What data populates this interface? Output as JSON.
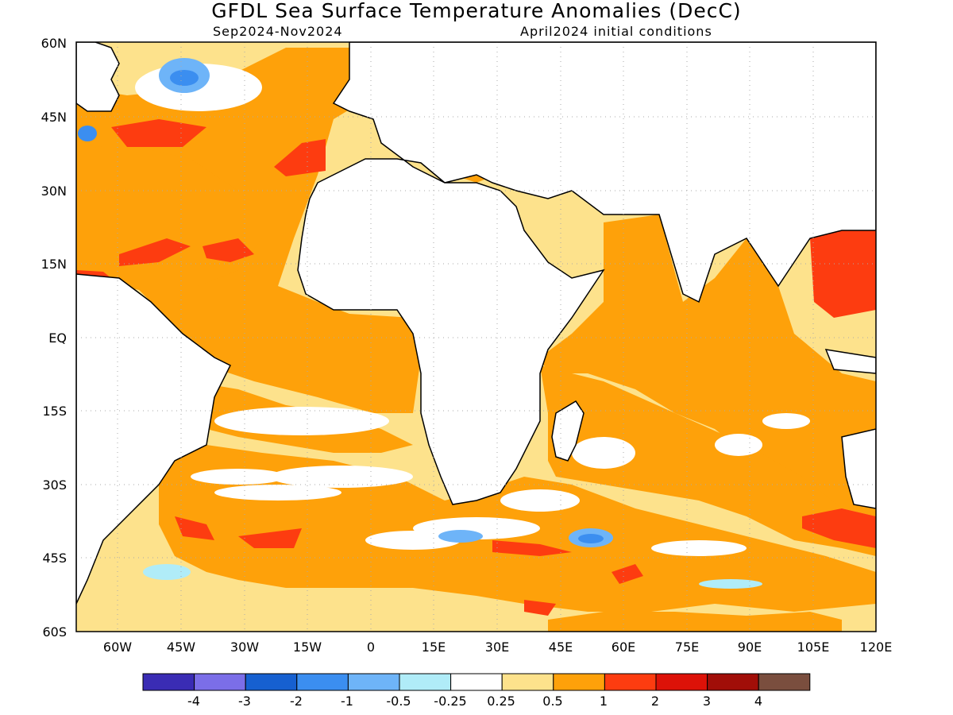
{
  "title": "GFDL Sea Surface Temperature Anomalies (DecC)",
  "subtitle_left": "Sep2024-Nov2024",
  "subtitle_right": "April2024 initial conditions",
  "map": {
    "lat_labels": [
      "60N",
      "45N",
      "30N",
      "15N",
      "EQ",
      "15S",
      "30S",
      "45S",
      "60S"
    ],
    "lon_labels": [
      "60W",
      "45W",
      "30W",
      "15W",
      "0",
      "15E",
      "30E",
      "45E",
      "60E",
      "75E",
      "90E",
      "105E",
      "120E"
    ],
    "lat_range": [
      -60,
      60
    ],
    "lon_range": [
      -70,
      120
    ],
    "grid": "dotted"
  },
  "colorbar": {
    "labels": [
      "-4",
      "-3",
      "-2",
      "-1",
      "-0.5",
      "-0.25",
      "0.25",
      "0.5",
      "1",
      "2",
      "3",
      "4"
    ],
    "colors": [
      "#3a2cb4",
      "#7b6ee8",
      "#1660d0",
      "#3b8ef0",
      "#6eb4f8",
      "#b0ecf8",
      "#ffffff",
      "#fde28c",
      "#fea10a",
      "#fd3c10",
      "#dd1208",
      "#a10e08",
      "#7a4e3e"
    ]
  }
}
